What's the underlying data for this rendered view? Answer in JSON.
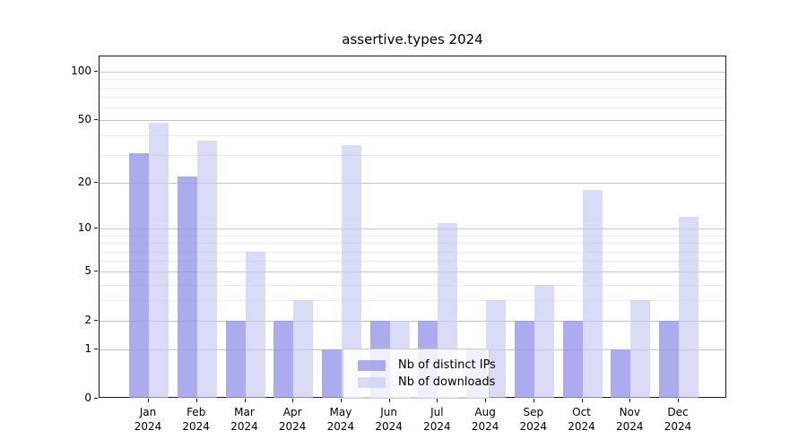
{
  "title": "assertive.types 2024",
  "chart_data": {
    "type": "bar",
    "title": "assertive.types 2024",
    "categories": [
      "Jan",
      "Feb",
      "Mar",
      "Apr",
      "May",
      "Jun",
      "Jul",
      "Aug",
      "Sep",
      "Oct",
      "Nov",
      "Dec"
    ],
    "year_label": "2024",
    "series": [
      {
        "name": "Nb of distinct IPs",
        "color": "#9696ea",
        "opacity": 0.8,
        "values": [
          31,
          22,
          2,
          2,
          1,
          2,
          2,
          1,
          2,
          2,
          1,
          2
        ]
      },
      {
        "name": "Nb of downloads",
        "color": "#c8c8f5",
        "opacity": 0.65,
        "values": [
          48,
          37,
          7,
          3,
          35,
          2,
          11,
          3,
          4,
          18,
          3,
          12
        ]
      }
    ],
    "xlabel": "",
    "ylabel": "",
    "yscale": "log1p",
    "ylim": [
      0,
      125
    ],
    "y_major_ticks": [
      0,
      1,
      2,
      5,
      10,
      20,
      50,
      100
    ],
    "y_minor_gridlines": [
      3,
      4,
      6,
      7,
      8,
      9,
      30,
      40,
      60,
      70,
      80,
      90
    ],
    "grid": true,
    "legend_position": "lower-center"
  },
  "colors": {
    "frame": "#1a1a1a",
    "major_grid": "#c6c6c6",
    "minor_grid": "#ebebeb",
    "background": "#ffffff"
  }
}
